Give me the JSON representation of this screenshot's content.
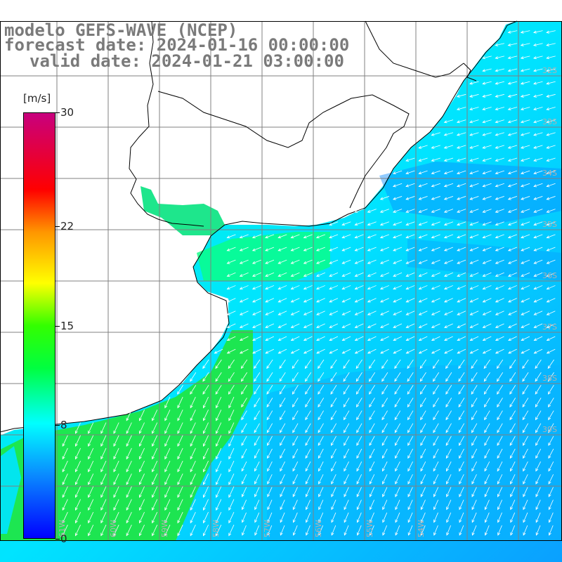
{
  "title": {
    "line1": "modelo GEFS-WAVE (NCEP)",
    "line2": "forecast date: 2024-01-16 00:00:00",
    "line3": "valid date: 2024-01-21 03:00:00"
  },
  "colorbar": {
    "unit": "[m/s]",
    "ticks": [
      {
        "label": "30",
        "value": 30
      },
      {
        "label": "22",
        "value": 22
      },
      {
        "label": "15",
        "value": 15
      },
      {
        "label": "8",
        "value": 8
      },
      {
        "label": "0",
        "value": 0
      }
    ],
    "range": [
      0,
      30
    ],
    "colors": [
      "#0000ff",
      "#0a8cff",
      "#00ffff",
      "#00ff00",
      "#ffff00",
      "#ff8c00",
      "#ff0000",
      "#c8007e"
    ]
  },
  "map": {
    "variable": "wind speed and direction",
    "ocean_dominant_colors": [
      "#00b4ff",
      "#00e4ff",
      "#00ff7f",
      "#1ee61e"
    ],
    "land_color": "#ffffff",
    "grid_color": "#808080",
    "arrow_color": "#ffffff",
    "lat_labels": [
      "32S",
      "33S",
      "34S",
      "35S",
      "36S",
      "37S",
      "38S",
      "39S"
    ],
    "lon_labels": [
      "61W",
      "60W",
      "59W",
      "58W",
      "57W",
      "56W",
      "55W",
      "54W"
    ]
  }
}
